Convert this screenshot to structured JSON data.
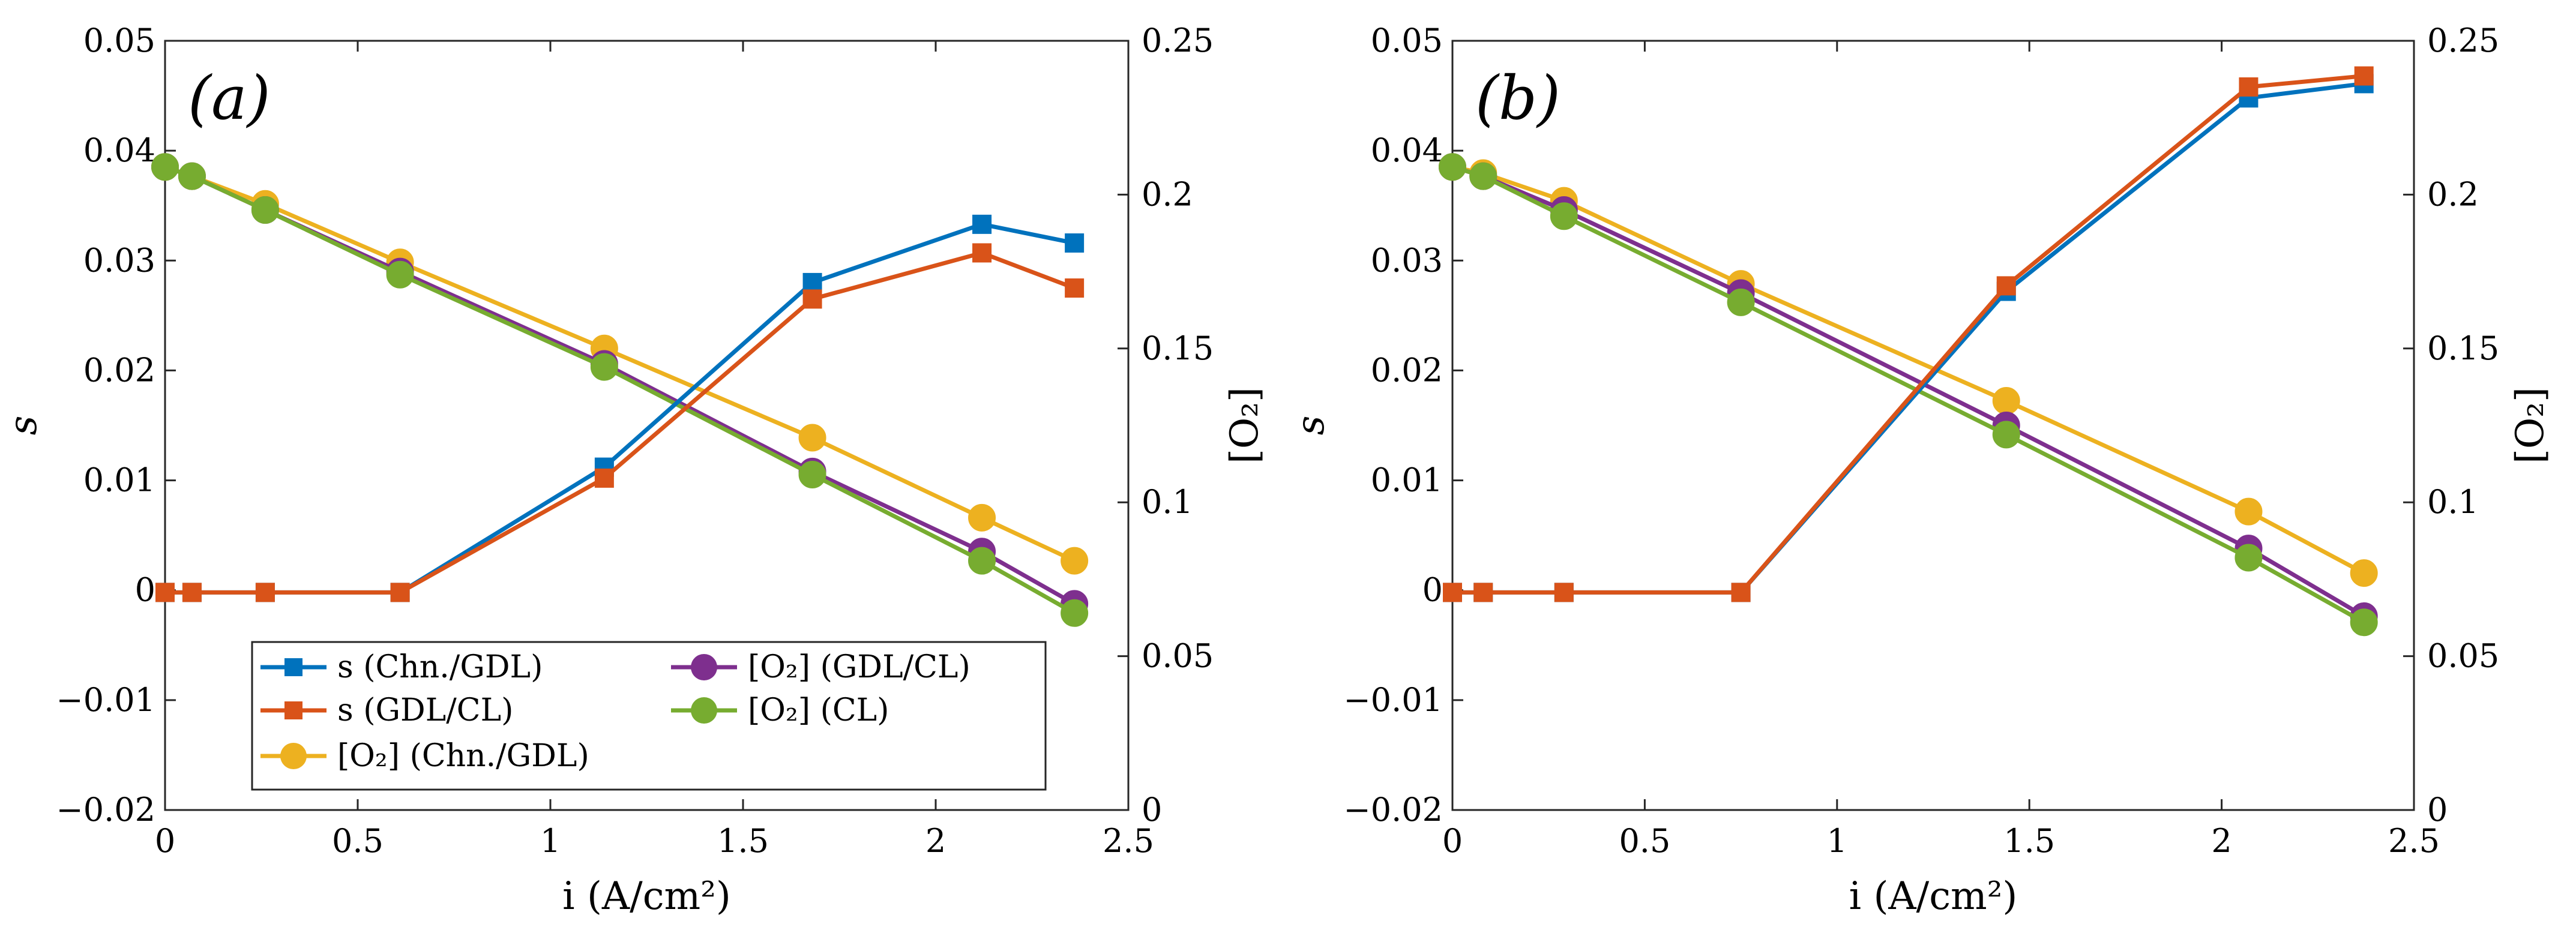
{
  "chart_data": [
    {
      "type": "line",
      "panel_label": "(a)",
      "xlabel": "i (A/cm²)",
      "ylabel_left": "s",
      "ylabel_right": "[O₂]",
      "xlim": [
        0,
        2.5
      ],
      "ylim_left": [
        -0.02,
        0.05
      ],
      "ylim_right": [
        0,
        0.25
      ],
      "xticks": [
        "0",
        "0.5",
        "1",
        "1.5",
        "2",
        "2.5"
      ],
      "yticks_left": [
        "−0.02",
        "−0.01",
        "0",
        "0.01",
        "0.02",
        "0.03",
        "0.04",
        "0.05"
      ],
      "yticks_right": [
        "0",
        "0.05",
        "0.1",
        "0.15",
        "0.2",
        "0.25"
      ],
      "x": [
        0,
        0.07,
        0.26,
        0.61,
        1.14,
        1.68,
        2.12,
        2.36
      ],
      "series": [
        {
          "name": "s (Chn./GDL)",
          "axis": "left",
          "marker": "square",
          "color": "#0072BD",
          "values": [
            -0.0002,
            -0.0002,
            -0.0002,
            -0.0002,
            0.0112,
            0.028,
            0.0333,
            0.0316
          ]
        },
        {
          "name": "s (GDL/CL)",
          "axis": "left",
          "marker": "square",
          "color": "#D95319",
          "values": [
            -0.0002,
            -0.0002,
            -0.0002,
            -0.0002,
            0.0102,
            0.0265,
            0.0307,
            0.0275
          ]
        },
        {
          "name": "[O₂] (Chn./GDL)",
          "axis": "right",
          "marker": "circle",
          "color": "#EDB120",
          "values": [
            0.209,
            0.206,
            0.197,
            0.178,
            0.15,
            0.121,
            0.095,
            0.081
          ]
        },
        {
          "name": "[O₂] (GDL/CL)",
          "axis": "right",
          "marker": "circle",
          "color": "#7E2F8E",
          "values": [
            0.209,
            0.206,
            0.195,
            0.175,
            0.145,
            0.11,
            0.084,
            0.067
          ]
        },
        {
          "name": "[O₂] (CL)",
          "axis": "right",
          "marker": "circle",
          "color": "#77AC30",
          "values": [
            0.209,
            0.206,
            0.195,
            0.174,
            0.144,
            0.109,
            0.081,
            0.064
          ]
        }
      ],
      "legend": {
        "placement": "lower-left",
        "columns": [
          [
            "s (Chn./GDL)",
            "s (GDL/CL)",
            "[O₂] (Chn./GDL)"
          ],
          [
            "[O₂] (GDL/CL)",
            "[O₂] (CL)"
          ]
        ]
      }
    },
    {
      "type": "line",
      "panel_label": "(b)",
      "xlabel": "i (A/cm²)",
      "ylabel_left": "s",
      "ylabel_right": "[O₂]",
      "xlim": [
        0,
        2.5
      ],
      "ylim_left": [
        -0.02,
        0.05
      ],
      "ylim_right": [
        0,
        0.25
      ],
      "xticks": [
        "0",
        "0.5",
        "1",
        "1.5",
        "2",
        "2.5"
      ],
      "yticks_left": [
        "−0.02",
        "−0.01",
        "0",
        "0.01",
        "0.02",
        "0.03",
        "0.04",
        "0.05"
      ],
      "yticks_right": [
        "0",
        "0.05",
        "0.1",
        "0.15",
        "0.2",
        "0.25"
      ],
      "x": [
        0,
        0.08,
        0.29,
        0.75,
        1.44,
        2.07,
        2.37
      ],
      "series": [
        {
          "name": "s (Chn./GDL)",
          "axis": "left",
          "marker": "square",
          "color": "#0072BD",
          "values": [
            -0.0002,
            -0.0002,
            -0.0002,
            -0.0002,
            0.0272,
            0.0448,
            0.0461
          ]
        },
        {
          "name": "s (GDL/CL)",
          "axis": "left",
          "marker": "square",
          "color": "#D95319",
          "values": [
            -0.0002,
            -0.0002,
            -0.0002,
            -0.0002,
            0.0277,
            0.0458,
            0.0468
          ]
        },
        {
          "name": "[O₂] (Chn./GDL)",
          "axis": "right",
          "marker": "circle",
          "color": "#EDB120",
          "values": [
            0.209,
            0.207,
            0.198,
            0.171,
            0.133,
            0.097,
            0.077
          ]
        },
        {
          "name": "[O₂] (GDL/CL)",
          "axis": "right",
          "marker": "circle",
          "color": "#7E2F8E",
          "values": [
            0.209,
            0.206,
            0.195,
            0.168,
            0.125,
            0.085,
            0.063
          ]
        },
        {
          "name": "[O₂] (CL)",
          "axis": "right",
          "marker": "circle",
          "color": "#77AC30",
          "values": [
            0.209,
            0.206,
            0.193,
            0.165,
            0.122,
            0.082,
            0.061
          ]
        }
      ]
    }
  ]
}
